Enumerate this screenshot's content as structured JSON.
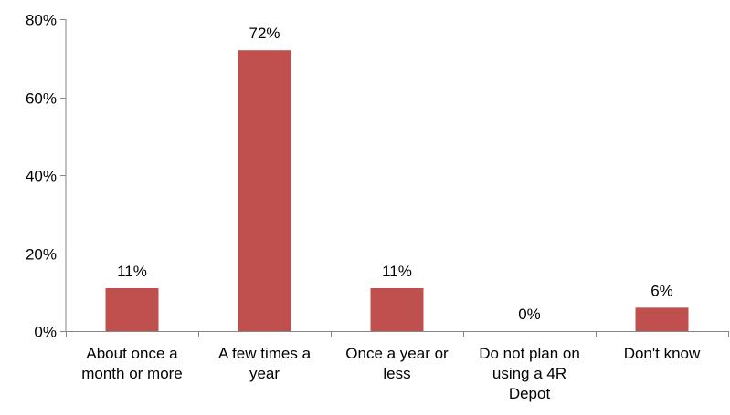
{
  "chart_data": {
    "type": "bar",
    "categories": [
      [
        "About once a",
        "month or more"
      ],
      [
        "A few times a",
        "year"
      ],
      [
        "Once a year or",
        "less"
      ],
      [
        "Do not plan on",
        "using a 4R",
        "Depot"
      ],
      [
        "Don't know"
      ]
    ],
    "values": [
      11,
      72,
      11,
      0,
      6
    ],
    "data_labels": [
      "11%",
      "72%",
      "11%",
      "0%",
      "6%"
    ],
    "ylim": [
      0,
      80
    ],
    "yticks": [
      0,
      20,
      40,
      60,
      80
    ],
    "ytick_labels": [
      "0%",
      "20%",
      "40%",
      "60%",
      "80%"
    ],
    "bar_color": "#C0504D",
    "axis_color": "#868686",
    "grid": false,
    "legend": "none",
    "title": "",
    "xlabel": "",
    "ylabel": ""
  }
}
